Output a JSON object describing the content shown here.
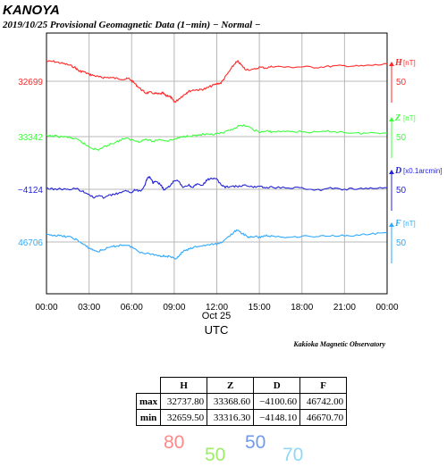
{
  "header": {
    "station": "KANOYA",
    "subtitle": "2019/10/25  Provisional Geomagnetic Data (1−min)  − Normal −"
  },
  "footer": {
    "date_label": "Oct 25",
    "axis_label": "UTC",
    "observatory": "Kakioka Magnetic Observatory"
  },
  "colors": {
    "H": "#ff2a2a",
    "Z": "#3dff3d",
    "D": "#2424d8",
    "F": "#2ea9ff",
    "grid": "#b8b8b8"
  },
  "chart_data": {
    "type": "line",
    "x_unit": "UTC",
    "x_ticks": [
      "00:00",
      "03:00",
      "06:00",
      "09:00",
      "12:00",
      "15:00",
      "18:00",
      "21:00",
      "00:00"
    ],
    "xlim": [
      0,
      24
    ],
    "scale_units_per_division": 50,
    "series": [
      {
        "name": "H",
        "unit": "[nT]",
        "baseline_label": "32699",
        "scale_label": "50",
        "x": [
          0,
          0.5,
          1,
          1.5,
          2,
          2.3,
          2.6,
          3,
          3.3,
          3.7,
          4,
          4.5,
          5,
          5.5,
          5.8,
          6.1,
          6.4,
          6.7,
          7,
          7.3,
          7.7,
          8,
          8.2,
          8.4,
          8.6,
          8.8,
          9,
          9.2,
          9.5,
          9.8,
          10,
          10.4,
          10.8,
          11.2,
          11.6,
          12,
          12.3,
          12.6,
          13,
          13.3,
          13.5,
          13.8,
          14,
          14.5,
          15,
          15.5,
          16,
          17,
          18,
          19,
          20,
          21,
          22,
          23,
          24
        ],
        "values": [
          32736,
          32736,
          32733,
          32730,
          32725,
          32718,
          32717,
          32712,
          32710,
          32707,
          32706,
          32706,
          32704,
          32703,
          32704,
          32698,
          32690,
          32683,
          32677,
          32678,
          32676,
          32675,
          32677,
          32672,
          32672,
          32668,
          32660,
          32663,
          32670,
          32676,
          32680,
          32683,
          32683,
          32685,
          32690,
          32694,
          32696,
          32707,
          32722,
          32733,
          32736,
          32727,
          32722,
          32720,
          32725,
          32724,
          32727,
          32725,
          32726,
          32725,
          32727,
          32728,
          32727,
          32729,
          32731
        ]
      },
      {
        "name": "Z",
        "unit": "[nT]",
        "baseline_label": "33342",
        "scale_label": "50",
        "x": [
          0,
          0.5,
          1,
          1.5,
          2,
          2.4,
          2.8,
          3.2,
          3.6,
          4,
          4.5,
          5,
          5.5,
          6,
          6.5,
          7,
          7.5,
          8,
          8.5,
          9,
          9.5,
          10,
          10.5,
          11,
          11.5,
          12,
          12.5,
          13,
          13.5,
          14,
          14.5,
          15,
          15.5,
          16,
          17,
          18,
          19,
          20,
          21,
          22,
          23,
          24
        ],
        "values": [
          33343,
          33343,
          33342,
          33341,
          33338,
          33333,
          33326,
          33321,
          33317,
          33322,
          33328,
          33333,
          33339,
          33336,
          33333,
          33337,
          33333,
          33337,
          33334,
          33337,
          33341,
          33344,
          33344,
          33346,
          33345,
          33347,
          33349,
          33355,
          33361,
          33363,
          33356,
          33350,
          33352,
          33351,
          33352,
          33351,
          33350,
          33352,
          33350,
          33348,
          33349,
          33349
        ]
      },
      {
        "name": "D",
        "unit": "[x0.1arcmin]",
        "baseline_label": "−4124",
        "scale_label": "50",
        "x": [
          0,
          0.5,
          1,
          1.5,
          2,
          2.5,
          3,
          3.3,
          3.6,
          4,
          4.5,
          5,
          5.5,
          6,
          6.3,
          6.6,
          6.9,
          7.1,
          7.3,
          7.5,
          7.7,
          8,
          8.3,
          8.6,
          9,
          9.3,
          9.6,
          10,
          10.3,
          10.6,
          11,
          11.3,
          11.6,
          12,
          12.3,
          12.6,
          13,
          13.5,
          14,
          14.5,
          15,
          15.5,
          16,
          17,
          18,
          19,
          20,
          21,
          22,
          23,
          24
        ],
        "values": [
          -4122,
          -4124,
          -4123,
          -4125,
          -4122,
          -4127,
          -4133,
          -4140,
          -4136,
          -4139,
          -4135,
          -4132,
          -4128,
          -4129,
          -4125,
          -4127,
          -4118,
          -4103,
          -4101,
          -4112,
          -4110,
          -4114,
          -4126,
          -4120,
          -4108,
          -4109,
          -4120,
          -4116,
          -4120,
          -4115,
          -4117,
          -4107,
          -4103,
          -4106,
          -4115,
          -4120,
          -4118,
          -4119,
          -4117,
          -4120,
          -4118,
          -4121,
          -4120,
          -4122,
          -4121,
          -4126,
          -4122,
          -4124,
          -4123,
          -4122,
          -4121
        ]
      },
      {
        "name": "F",
        "unit": "[nT]",
        "baseline_label": "46706",
        "scale_label": "50",
        "x": [
          0,
          0.5,
          1,
          1.5,
          2,
          2.4,
          2.8,
          3.2,
          3.6,
          4,
          4.5,
          5,
          5.5,
          6,
          6.5,
          7,
          7.5,
          8,
          8.3,
          8.6,
          9,
          9.3,
          9.6,
          10,
          10.5,
          11,
          11.5,
          12,
          12.5,
          13,
          13.4,
          13.8,
          14.2,
          14.6,
          15,
          15.5,
          16,
          17,
          18,
          19,
          20,
          21,
          22,
          23,
          24
        ],
        "values": [
          46719,
          46719,
          46717,
          46716,
          46712,
          46705,
          46698,
          46692,
          46688,
          46692,
          46696,
          46699,
          46701,
          46697,
          46688,
          46685,
          46683,
          46680,
          46680,
          46679,
          46675,
          46678,
          46688,
          46692,
          46697,
          46699,
          46701,
          46702,
          46708,
          46720,
          46728,
          46722,
          46715,
          46716,
          46715,
          46718,
          46716,
          46715,
          46717,
          46716,
          46718,
          46718,
          46719,
          46721,
          46723
        ]
      }
    ]
  },
  "table": {
    "headers": [
      "H",
      "Z",
      "D",
      "F"
    ],
    "rows": [
      {
        "label": "max",
        "values": [
          "32737.80",
          "33368.60",
          "−4100.60",
          "46742.00"
        ]
      },
      {
        "label": "min",
        "values": [
          "32659.50",
          "33316.30",
          "−4148.10",
          "46670.70"
        ]
      }
    ]
  },
  "handwritten": [
    {
      "text": "80",
      "color": "#ff8888"
    },
    {
      "text": "50",
      "color": "#9dee66"
    },
    {
      "text": "50",
      "color": "#6f9bee"
    },
    {
      "text": "70",
      "color": "#8fd8f5"
    }
  ]
}
